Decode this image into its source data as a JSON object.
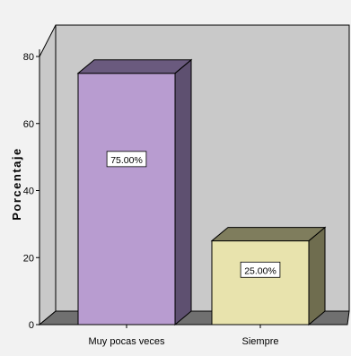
{
  "chart_data": {
    "type": "bar",
    "categories": [
      "Muy pocas veces",
      "Siempre"
    ],
    "values": [
      75,
      25
    ],
    "data_labels": [
      "75.00%",
      "25.00%"
    ],
    "title": "",
    "xlabel": "",
    "ylabel": "Porcentaje",
    "ylim": [
      0,
      80
    ],
    "yticks": [
      "0",
      "20",
      "40",
      "60",
      "80"
    ],
    "grid": false,
    "style": "3d",
    "colors": {
      "background": "#f2f2f2",
      "wall": "#c9c9c9",
      "floor": "#707070",
      "bar_fills": [
        "#b89cd0",
        "#e8e3ad"
      ],
      "bar_tops": [
        "#6a5a7e",
        "#7f7d5d"
      ],
      "bar_sides": [
        "#5e5070",
        "#6f6d4f"
      ]
    }
  }
}
